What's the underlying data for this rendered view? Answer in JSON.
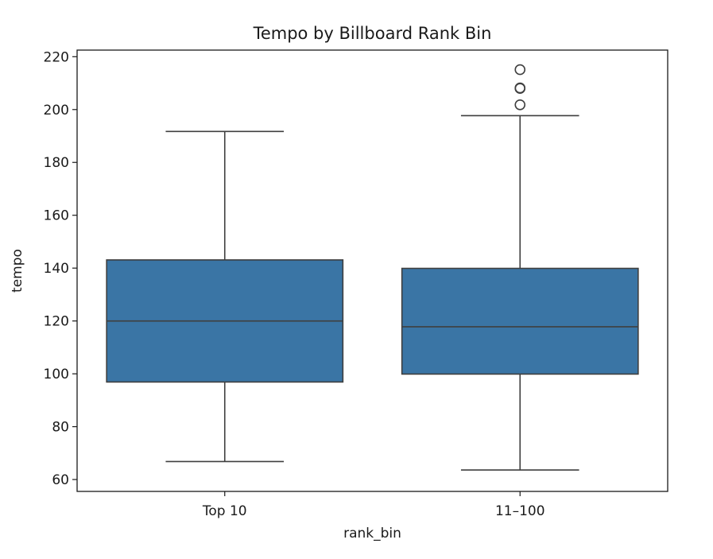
{
  "chart_data": {
    "type": "box",
    "title": "Tempo by Billboard Rank Bin",
    "xlabel": "rank_bin",
    "ylabel": "tempo",
    "ylim": [
      55.5,
      222.5
    ],
    "yticks": [
      60,
      80,
      100,
      120,
      140,
      160,
      180,
      200,
      220
    ],
    "categories": [
      "Top 10",
      "11–100"
    ],
    "boxes": [
      {
        "category": "Top 10",
        "whisker_low": 66.8,
        "q1": 96.9,
        "median": 120.0,
        "q3": 143.1,
        "whisker_high": 191.7,
        "outliers": []
      },
      {
        "category": "11–100",
        "whisker_low": 63.6,
        "q1": 99.9,
        "median": 117.8,
        "q3": 139.9,
        "whisker_high": 197.7,
        "outliers": [
          201.8,
          208.0,
          208.2,
          215.1
        ]
      }
    ],
    "colors": {
      "box_fill": "#3a75a5",
      "line": "#3f3f3f",
      "axis": "#1a1a1a",
      "background": "#ffffff"
    },
    "grid": false,
    "legend": "none"
  }
}
